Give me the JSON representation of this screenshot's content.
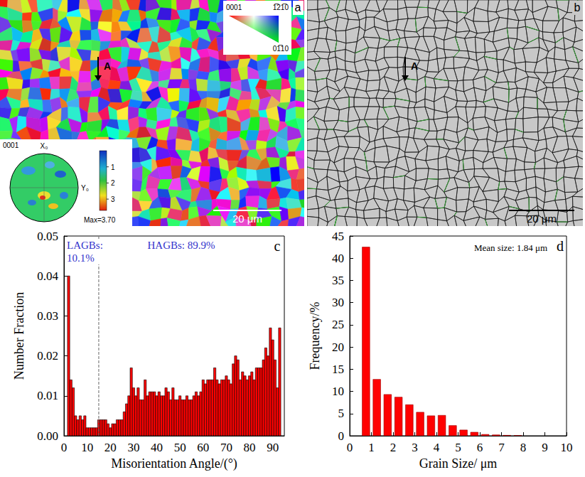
{
  "chart_data": [
    {
      "panel": "c",
      "type": "histogram",
      "x_label": "Misorientation Angle/(°)",
      "y_label": "Number Fraction",
      "bins": [
        1.5,
        2.5,
        3.5,
        4.5,
        5.5,
        6.5,
        7.5,
        8.5,
        9.5,
        10.5,
        11.5,
        12.5,
        13.5,
        14.5,
        15.5,
        16.5,
        17.5,
        18.5,
        19.5,
        20.5,
        21.5,
        22.5,
        23.5,
        24.5,
        25.5,
        26.5,
        27.5,
        28.5,
        29.5,
        30.5,
        31.5,
        32.5,
        33.5,
        34.5,
        35.5,
        36.5,
        37.5,
        38.5,
        39.5,
        40.5,
        41.5,
        42.5,
        43.5,
        44.5,
        45.5,
        46.5,
        47.5,
        48.5,
        49.5,
        50.5,
        51.5,
        52.5,
        53.5,
        54.5,
        55.5,
        56.5,
        57.5,
        58.5,
        59.5,
        60.5,
        61.5,
        62.5,
        63.5,
        64.5,
        65.5,
        66.5,
        67.5,
        68.5,
        69.5,
        70.5,
        71.5,
        72.5,
        73.5,
        74.5,
        75.5,
        76.5,
        77.5,
        78.5,
        79.5,
        80.5,
        81.5,
        82.5,
        83.5,
        84.5,
        85.5,
        86.5,
        87.5,
        88.5,
        89.5,
        90.5,
        91.5,
        92.5,
        93.5
      ],
      "values": [
        0.04,
        0.014,
        0.012,
        0.005,
        0.004,
        0.005,
        0.004,
        0.005,
        0.002,
        0.002,
        0.002,
        0.002,
        0.002,
        0.004,
        0.004,
        0.004,
        0.004,
        0.003,
        0.002,
        0.003,
        0.003,
        0.004,
        0.004,
        0.004,
        0.006,
        0.008,
        0.01,
        0.017,
        0.012,
        0.01,
        0.012,
        0.009,
        0.009,
        0.014,
        0.01,
        0.011,
        0.011,
        0.011,
        0.01,
        0.011,
        0.01,
        0.01,
        0.012,
        0.011,
        0.009,
        0.012,
        0.009,
        0.009,
        0.01,
        0.009,
        0.009,
        0.01,
        0.009,
        0.009,
        0.01,
        0.011,
        0.01,
        0.011,
        0.014,
        0.013,
        0.014,
        0.014,
        0.014,
        0.017,
        0.014,
        0.013,
        0.014,
        0.014,
        0.015,
        0.014,
        0.013,
        0.018,
        0.02,
        0.019,
        0.014,
        0.016,
        0.015,
        0.014,
        0.015,
        0.016,
        0.014,
        0.017,
        0.017,
        0.017,
        0.019,
        0.022,
        0.02,
        0.027,
        0.024,
        0.019,
        0.012,
        0.027
      ],
      "color": "#ff0000",
      "xlim": [
        0,
        95
      ],
      "xticks": [
        0,
        10,
        20,
        30,
        40,
        50,
        60,
        70,
        80,
        90
      ],
      "ylim": [
        0,
        0.05
      ],
      "yticks": [
        {
          "value": 0,
          "label": "0.00"
        },
        {
          "value": 0.01,
          "label": "0.01"
        },
        {
          "value": 0.02,
          "label": "0.02"
        },
        {
          "value": 0.03,
          "label": "0.03"
        },
        {
          "value": 0.04,
          "label": "0.04"
        },
        {
          "value": 0.05,
          "label": "0.05"
        }
      ],
      "grid": false,
      "boundary_line": 15,
      "annotations": [
        {
          "text": "LAGBs: 10.1%",
          "color": "#3333cc"
        },
        {
          "text": "HAGBs: 89.9%",
          "color": "#3333cc"
        }
      ]
    },
    {
      "panel": "d",
      "type": "histogram",
      "x_label": "Grain Size/ μm",
      "y_label": "Frequency/%",
      "bins": [
        0.5,
        1.0,
        1.5,
        2.0,
        2.5,
        3.0,
        3.5,
        4.0,
        4.5,
        5.0,
        5.5,
        6.0,
        6.5,
        7.0,
        7.5,
        8.0
      ],
      "values": [
        42.5,
        12.7,
        9.3,
        8.7,
        7.0,
        5.3,
        4.5,
        4.6,
        2.3,
        1.3,
        0.8,
        0.3,
        0.2,
        0.1,
        0.05
      ],
      "color": "#ff0000",
      "xlim": [
        0,
        10
      ],
      "xticks": [
        0,
        1,
        2,
        3,
        4,
        5,
        6,
        7,
        8,
        9,
        10
      ],
      "ylim": [
        0,
        45
      ],
      "yticks": [
        0,
        5,
        10,
        15,
        20,
        25,
        30,
        35,
        40,
        45
      ],
      "grid": false,
      "annotations": [
        {
          "text": "Mean size: 1.84 μm"
        }
      ]
    }
  ],
  "images": [
    {
      "panel": "a",
      "marker": "A",
      "scale_bar": "20 μm",
      "ipf_key": [
        "0001",
        "1̅21̅0",
        "01̅10"
      ],
      "pole_figure": {
        "title": "0001",
        "x_label": "X₀",
        "y_label": "Y₀",
        "colorbar_lim": [
          0,
          3.7
        ],
        "colorbar_ticks": [
          1,
          2,
          3
        ],
        "max_label": "Max=3.70"
      }
    },
    {
      "panel": "b",
      "marker": "A",
      "scale_bar": "20 μm"
    }
  ]
}
